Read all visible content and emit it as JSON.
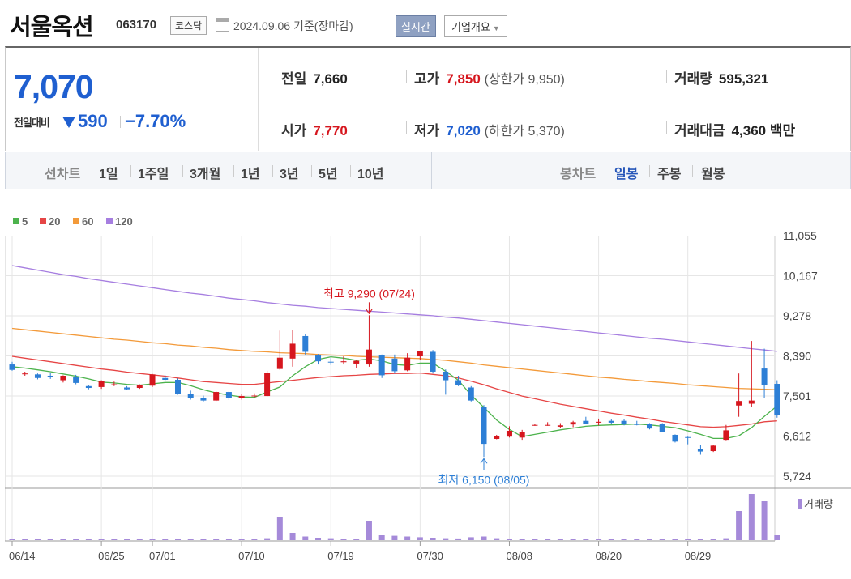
{
  "header": {
    "title": "서울옥션",
    "code": "063170",
    "market": "코스닥",
    "date": "2024.09.06",
    "basis": "기준(장마감)",
    "realtime_btn": "실시간",
    "company_btn": "기업개요"
  },
  "summary": {
    "price": "7,070",
    "change_label": "전일대비",
    "change_amount": "590",
    "change_pct": "−7.70%",
    "prev_close": {
      "label": "전일",
      "value": "7,660"
    },
    "open": {
      "label": "시가",
      "value": "7,770"
    },
    "high": {
      "label": "고가",
      "value": "7,850",
      "limit_label": "(상한가 9,950)"
    },
    "low": {
      "label": "저가",
      "value": "7,020",
      "limit_label": "(하한가 5,370)"
    },
    "volume": {
      "label": "거래량",
      "value": "595,321"
    },
    "trade_value": {
      "label": "거래대금",
      "value": "4,360",
      "unit": "백만"
    }
  },
  "toolbar": {
    "line_label": "선차트",
    "line_periods": [
      "1일",
      "1주일",
      "3개월",
      "1년",
      "3년",
      "5년",
      "10년"
    ],
    "candle_label": "봉차트",
    "candle_periods": [
      "일봉",
      "주봉",
      "월봉"
    ],
    "active_candle": "일봉"
  },
  "colors": {
    "up": "#d6161e",
    "down": "#2d7fd6",
    "ma5": "#4db34d",
    "ma20": "#e64545",
    "ma60": "#f39a3a",
    "ma120": "#a67ee0",
    "volume": "#a58ad9"
  },
  "chart_data": {
    "type": "candlestick",
    "legend": [
      {
        "name": "5",
        "color": "#4db34d"
      },
      {
        "name": "20",
        "color": "#e64545"
      },
      {
        "name": "60",
        "color": "#f39a3a"
      },
      {
        "name": "120",
        "color": "#a67ee0"
      }
    ],
    "y_ticks": [
      "11,055",
      "10,167",
      "9,278",
      "8,390",
      "7,501",
      "6,612",
      "5,724"
    ],
    "y_tick_values": [
      11055,
      10167,
      9278,
      8390,
      7501,
      6612,
      5724
    ],
    "ylim": [
      5724,
      11055
    ],
    "x_tick_labels": [
      "06/14",
      "06/25",
      "07/01",
      "07/10",
      "07/19",
      "07/30",
      "08/08",
      "08/20",
      "08/29"
    ],
    "x_tick_index": [
      0,
      7,
      11,
      18,
      25,
      32,
      39,
      46,
      53
    ],
    "candles": [
      [
        8200,
        8260,
        8060,
        8080
      ],
      [
        8000,
        8040,
        7950,
        8000
      ],
      [
        7980,
        8000,
        7870,
        7900
      ],
      [
        7950,
        8010,
        7880,
        7930
      ],
      [
        7850,
        7960,
        7800,
        7950
      ],
      [
        7920,
        7970,
        7760,
        7790
      ],
      [
        7720,
        7750,
        7650,
        7680
      ],
      [
        7700,
        7850,
        7660,
        7830
      ],
      [
        7760,
        7820,
        7720,
        7760
      ],
      [
        7690,
        7720,
        7630,
        7650
      ],
      [
        7680,
        7760,
        7660,
        7740
      ],
      [
        7730,
        7990,
        7700,
        7980
      ],
      [
        7900,
        7960,
        7850,
        7860
      ],
      [
        7860,
        7890,
        7530,
        7550
      ],
      [
        7540,
        7620,
        7420,
        7460
      ],
      [
        7460,
        7510,
        7380,
        7400
      ],
      [
        7400,
        7600,
        7390,
        7590
      ],
      [
        7590,
        7600,
        7410,
        7450
      ],
      [
        7460,
        7540,
        7420,
        7500
      ],
      [
        7500,
        7560,
        7460,
        7510
      ],
      [
        7500,
        8060,
        7490,
        8020
      ],
      [
        8100,
        8950,
        8080,
        8350
      ],
      [
        8330,
        8960,
        8150,
        8660
      ],
      [
        8830,
        8880,
        8400,
        8480
      ],
      [
        8400,
        8430,
        8200,
        8270
      ],
      [
        8260,
        8340,
        8190,
        8250
      ],
      [
        8250,
        8380,
        8200,
        8270
      ],
      [
        8220,
        8300,
        8130,
        8280
      ],
      [
        8200,
        9290,
        8150,
        8530
      ],
      [
        8400,
        8420,
        7900,
        7960
      ],
      [
        8330,
        8420,
        8000,
        8050
      ],
      [
        8070,
        8450,
        8050,
        8350
      ],
      [
        8380,
        8500,
        8300,
        8490
      ],
      [
        8480,
        8520,
        8000,
        8040
      ],
      [
        8040,
        8090,
        7530,
        7850
      ],
      [
        7850,
        7950,
        7720,
        7750
      ],
      [
        7690,
        7720,
        7380,
        7400
      ],
      [
        7260,
        7300,
        6150,
        6440
      ],
      [
        6550,
        6640,
        6540,
        6620
      ],
      [
        6600,
        6830,
        6580,
        6730
      ],
      [
        6580,
        6750,
        6530,
        6700
      ],
      [
        6850,
        6880,
        6840,
        6860
      ],
      [
        6860,
        6920,
        6840,
        6860
      ],
      [
        6820,
        6900,
        6800,
        6850
      ],
      [
        6870,
        6950,
        6810,
        6920
      ],
      [
        6950,
        7040,
        6880,
        6890
      ],
      [
        6910,
        7000,
        6850,
        6930
      ],
      [
        6950,
        6980,
        6880,
        6910
      ],
      [
        6950,
        6990,
        6850,
        6870
      ],
      [
        6880,
        6950,
        6850,
        6860
      ],
      [
        6880,
        6900,
        6760,
        6780
      ],
      [
        6880,
        6900,
        6700,
        6710
      ],
      [
        6640,
        6650,
        6470,
        6490
      ],
      [
        6590,
        6600,
        6430,
        6580
      ],
      [
        6330,
        6420,
        6200,
        6270
      ],
      [
        6280,
        6410,
        6260,
        6400
      ],
      [
        6530,
        6860,
        6520,
        6740
      ],
      [
        7290,
        8000,
        7040,
        7390
      ],
      [
        7330,
        8720,
        7250,
        7400
      ],
      [
        8110,
        8550,
        7450,
        7740
      ],
      [
        7770,
        7850,
        7020,
        7070
      ]
    ],
    "ma5": [
      8150,
      8120,
      8080,
      8040,
      7990,
      7940,
      7880,
      7810,
      7790,
      7760,
      7740,
      7770,
      7800,
      7800,
      7730,
      7640,
      7570,
      7520,
      7480,
      7470,
      7590,
      7700,
      7950,
      8150,
      8310,
      8370,
      8340,
      8290,
      8320,
      8280,
      8200,
      8180,
      8230,
      8230,
      8050,
      7850,
      7520,
      7250,
      6970,
      6760,
      6600,
      6650,
      6700,
      6750,
      6790,
      6830,
      6850,
      6860,
      6870,
      6880,
      6860,
      6830,
      6800,
      6730,
      6650,
      6560,
      6560,
      6620,
      6800,
      7050,
      7280
    ],
    "ma20": [
      8380,
      8340,
      8300,
      8260,
      8220,
      8180,
      8140,
      8100,
      8070,
      8030,
      8000,
      7970,
      7940,
      7900,
      7860,
      7820,
      7800,
      7780,
      7760,
      7760,
      7790,
      7820,
      7850,
      7880,
      7910,
      7930,
      7950,
      7960,
      7980,
      7990,
      8000,
      8000,
      8010,
      7980,
      7950,
      7900,
      7830,
      7750,
      7660,
      7580,
      7500,
      7440,
      7380,
      7320,
      7270,
      7220,
      7170,
      7120,
      7080,
      7030,
      6990,
      6940,
      6900,
      6860,
      6820,
      6810,
      6820,
      6850,
      6880,
      6930,
      6950
    ],
    "ma60": [
      9000,
      8970,
      8940,
      8910,
      8880,
      8850,
      8820,
      8790,
      8760,
      8740,
      8710,
      8680,
      8660,
      8630,
      8610,
      8580,
      8560,
      8530,
      8510,
      8490,
      8480,
      8460,
      8450,
      8440,
      8420,
      8410,
      8400,
      8380,
      8370,
      8360,
      8350,
      8340,
      8330,
      8310,
      8290,
      8260,
      8230,
      8190,
      8160,
      8130,
      8100,
      8070,
      8040,
      8010,
      7980,
      7950,
      7920,
      7900,
      7870,
      7850,
      7820,
      7800,
      7780,
      7750,
      7730,
      7710,
      7690,
      7670,
      7660,
      7650,
      7640
    ],
    "ma120": [
      10390,
      10340,
      10290,
      10240,
      10190,
      10150,
      10100,
      10060,
      10020,
      9980,
      9940,
      9900,
      9860,
      9820,
      9780,
      9750,
      9710,
      9670,
      9640,
      9610,
      9570,
      9540,
      9510,
      9490,
      9460,
      9440,
      9420,
      9400,
      9380,
      9360,
      9340,
      9320,
      9300,
      9280,
      9250,
      9230,
      9200,
      9170,
      9140,
      9110,
      9080,
      9050,
      9020,
      8990,
      8960,
      8930,
      8900,
      8870,
      8840,
      8810,
      8780,
      8760,
      8730,
      8700,
      8670,
      8640,
      8610,
      8580,
      8550,
      8520,
      8490
    ],
    "volume_label": "거래량",
    "volume": [
      5,
      5,
      5,
      5,
      5,
      5,
      5,
      5,
      5,
      5,
      5,
      5,
      5,
      5,
      5,
      5,
      5,
      5,
      5,
      5,
      8,
      95,
      30,
      15,
      10,
      8,
      6,
      5,
      80,
      20,
      18,
      15,
      12,
      10,
      8,
      7,
      12,
      15,
      8,
      6,
      5,
      5,
      5,
      5,
      5,
      5,
      5,
      5,
      5,
      5,
      5,
      5,
      5,
      5,
      5,
      6,
      8,
      120,
      190,
      160,
      20
    ],
    "max_annotation": "최고 9,290 (07/24)",
    "min_annotation": "최저 6,150 (08/05)",
    "max_index": 28,
    "min_index": 37
  }
}
